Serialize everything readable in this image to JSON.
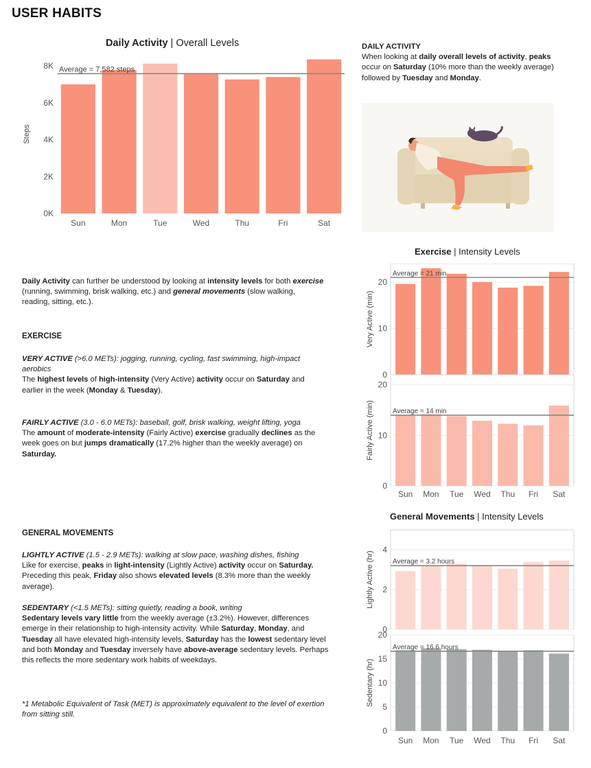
{
  "page": {
    "title": "USER HABITS"
  },
  "daily_chart": {
    "heading_bold": "Daily Activity",
    "heading_sep": " | ",
    "heading_rest": "Overall Levels"
  },
  "daily_note": {
    "title": "DAILY ACTIVITY",
    "s1": "When looking at ",
    "b1": "daily overall levels of activity",
    "s2": ", ",
    "b2": "peaks",
    "s3": " occur on ",
    "b3": "Saturday",
    "s4": " (10% more than the weekly average) followed by ",
    "b4": "Tuesday",
    "s5": " and ",
    "b5": "Monday",
    "s6": "."
  },
  "exercise_chart": {
    "heading_bold": "Exercise",
    "heading_sep": " | ",
    "heading_rest": "Intensity Levels"
  },
  "general_chart": {
    "heading_bold": "General Movements",
    "heading_sep": " | ",
    "heading_rest": "Intensity Levels"
  },
  "intro": {
    "b1": "Daily Activity",
    "s1": " can further be understood by looking at ",
    "b2": "intensity levels",
    "s2": " for both ",
    "bi1": "exercise",
    "s3": " (running, swimming, brisk walking, etc.) and ",
    "bi2": "general movements",
    "s4": " (slow walking, reading, sitting, etc.)."
  },
  "exercise_text": {
    "heading": "EXERCISE",
    "very_title": "VERY ACTIVE",
    "very_desc": " (>6.0 METs):  jogging, running, cycling, fast swimming, high-impact aerobics",
    "v_s1": "The ",
    "v_b1": "highest levels",
    "v_s2": " of ",
    "v_b2": "high-intensity",
    "v_s3": " (Very Active) ",
    "v_b3": "activity",
    "v_s4": " occur on ",
    "v_b4": "Saturday",
    "v_s5": " and earlier in the week (",
    "v_b5": "Monday",
    "v_s6": " & ",
    "v_b6": "Tuesday",
    "v_s7": ").",
    "fairly_title": "FAIRLY ACTIVE",
    "fairly_desc": " (3.0 - 6.0 METs): baseball, golf, brisk walking, weight lifting, yoga",
    "f_s1": "The ",
    "f_b1": "amount",
    "f_s2": " of ",
    "f_b2": "moderate-intensity",
    "f_s3": " (Fairly Active) ",
    "f_b3": "exercise",
    "f_s4": " gradually ",
    "f_b4": "declines",
    "f_s5": " as the week goes on but ",
    "f_b5": "jumps dramatically",
    "f_s6": " (17.2% higher than the weekly average) on ",
    "f_b6": "Saturday."
  },
  "general_text": {
    "heading": "GENERAL MOVEMENTS",
    "light_title": "LIGHTLY ACTIVE",
    "light_desc": " (1.5 - 2.9 METs): walking at slow pace, washing dishes, fishing",
    "l_s1": "Like for exercise, ",
    "l_b1": "peaks",
    "l_s2": " in ",
    "l_b2": "light-intensity",
    "l_s3": " (Lightly Active) ",
    "l_b3": "activity",
    "l_s4": " occur on ",
    "l_b4": "Saturday.",
    "l_s5": " Preceding this peak, ",
    "l_b5": "Friday",
    "l_s6": " also shows ",
    "l_b6": "elevated levels",
    "l_s7": " (8.3% more than the weekly average).",
    "sed_title": "SEDENTARY",
    "sed_desc": " (<1.5 METs): sitting quietly, reading a book, writing",
    "d_b1": "Sedentary levels vary little",
    "d_s1": " from the weekly average (±3.2%). However, differences emerge in their relationship to high-intensity activity. While ",
    "d_b2": "Saturday",
    "d_s2": ", ",
    "d_b3": "Monday",
    "d_s3": ", and ",
    "d_b4": "Tuesday",
    "d_s4": " all have elevated high-intensity levels, ",
    "d_b5": "Saturday",
    "d_s5": " has the ",
    "d_b6": "lowest",
    "d_s6": " sedentary level and both ",
    "d_b7": "Monday",
    "d_s7": " and ",
    "d_b8": "Tuesday",
    "d_s8": " inversely have ",
    "d_b9": "above-average",
    "d_s9": " sedentary levels. Perhaps this reflects the more sedentary work habits of weekdays."
  },
  "footnote": {
    "text": "*1 Metabolic Equivalent of Task (MET) is approximately equivalent to the level of exertion from sitting still."
  },
  "chart_data": [
    {
      "id": "daily",
      "type": "bar",
      "title": "Daily Activity | Overall Levels",
      "categories": [
        "Sun",
        "Mon",
        "Tue",
        "Wed",
        "Thu",
        "Fri",
        "Sat"
      ],
      "values": [
        7000,
        7780,
        8130,
        7560,
        7270,
        7400,
        8360
      ],
      "ylabel": "Steps",
      "ylim": [
        0,
        8600
      ],
      "yticks": [
        0,
        2000,
        4000,
        6000,
        8000
      ],
      "yticklabels": [
        "0K",
        "2K",
        "4K",
        "6K",
        "8K"
      ],
      "reference_line": {
        "value": 7582,
        "label": "Average = 7,582 steps"
      },
      "color": "#f8927a",
      "highlight": {
        "category": "Tue",
        "color": "#fbbfb2"
      },
      "grid": false
    },
    {
      "id": "very_active",
      "type": "bar",
      "group": "Exercise | Intensity Levels",
      "categories": [
        "Sun",
        "Mon",
        "Tue",
        "Wed",
        "Thu",
        "Fri",
        "Sat"
      ],
      "values": [
        19.6,
        23.0,
        21.8,
        20.0,
        18.8,
        19.2,
        22.2
      ],
      "ylabel": "Very Active (min)",
      "ylim": [
        0,
        24
      ],
      "yticks": [
        0,
        10,
        20
      ],
      "reference_line": {
        "value": 21,
        "label": "Average = 21 min"
      },
      "color": "#f8927a",
      "grid": true
    },
    {
      "id": "fairly_active",
      "type": "bar",
      "group": "Exercise | Intensity Levels",
      "categories": [
        "Sun",
        "Mon",
        "Tue",
        "Wed",
        "Thu",
        "Fri",
        "Sat"
      ],
      "values": [
        14.0,
        14.2,
        13.8,
        12.9,
        12.3,
        12.0,
        15.9
      ],
      "ylabel": "Fairly Active (min)",
      "ylim": [
        0,
        22
      ],
      "yticks": [
        0,
        10,
        20
      ],
      "reference_line": {
        "value": 14,
        "label": "Average = 14 min"
      },
      "color": "#fabaab",
      "grid": true
    },
    {
      "id": "lightly_active",
      "type": "bar",
      "group": "General Movements | Intensity Levels",
      "categories": [
        "Sun",
        "Mon",
        "Tue",
        "Wed",
        "Thu",
        "Fri",
        "Sat"
      ],
      "values": [
        2.93,
        3.22,
        3.3,
        3.22,
        3.05,
        3.38,
        3.46
      ],
      "ylabel": "Lightly Active (hr)",
      "ylim": [
        0,
        5
      ],
      "yticks": [
        0,
        2,
        4
      ],
      "reference_line": {
        "value": 3.2,
        "label": "Average = 3.2 hours"
      },
      "color": "#fcd8d1",
      "grid": true
    },
    {
      "id": "sedentary",
      "type": "bar",
      "group": "General Movements | Intensity Levels",
      "categories": [
        "Sun",
        "Mon",
        "Tue",
        "Wed",
        "Thu",
        "Fri",
        "Sat"
      ],
      "values": [
        16.8,
        17.2,
        17.0,
        16.9,
        16.5,
        16.8,
        16.1
      ],
      "ylabel": "Sedentary (hr)",
      "ylim": [
        0,
        20
      ],
      "yticks": [
        0,
        5,
        10,
        15,
        20
      ],
      "reference_line": {
        "value": 16.6,
        "label": "Average = 16.6 hours"
      },
      "color": "#a6aaaa",
      "grid": true
    }
  ],
  "illustration": {
    "subject": "person-lounging-on-couch-with-cat"
  }
}
